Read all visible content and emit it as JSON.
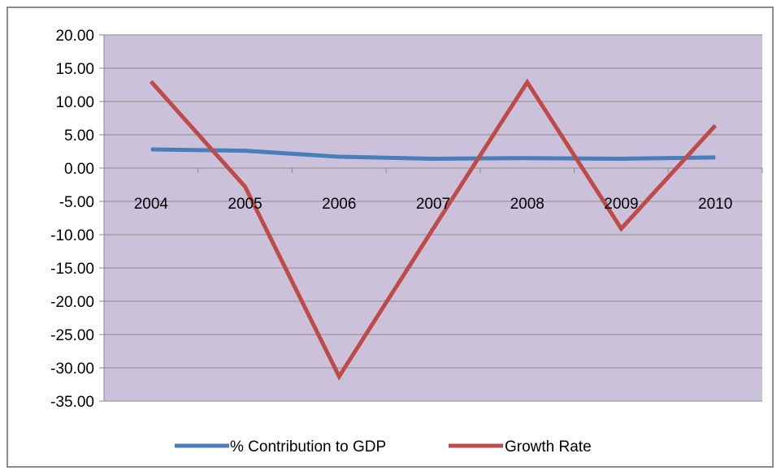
{
  "chart_data": {
    "type": "line",
    "categories": [
      "2004",
      "2005",
      "2006",
      "2007",
      "2008",
      "2009",
      "2010"
    ],
    "series": [
      {
        "name": "% Contribution to GDP",
        "values": [
          2.8,
          2.6,
          1.7,
          1.4,
          1.5,
          1.4,
          1.6
        ],
        "color": "#4a7ebb"
      },
      {
        "name": "Growth Rate",
        "values": [
          13.0,
          -2.8,
          -31.3,
          -9.1,
          12.9,
          -9.1,
          6.4
        ],
        "color": "#be4b48"
      }
    ],
    "ylim": [
      -35,
      20
    ],
    "y_ticks": [
      "20.00",
      "15.00",
      "10.00",
      "5.00",
      "0.00",
      "-5.00",
      "-10.00",
      "-15.00",
      "-20.00",
      "-25.00",
      "-30.00",
      "-35.00"
    ],
    "grid": true,
    "plot_background": "#ccc1da",
    "legend_position": "bottom",
    "title": "",
    "xlabel": "",
    "ylabel": ""
  }
}
